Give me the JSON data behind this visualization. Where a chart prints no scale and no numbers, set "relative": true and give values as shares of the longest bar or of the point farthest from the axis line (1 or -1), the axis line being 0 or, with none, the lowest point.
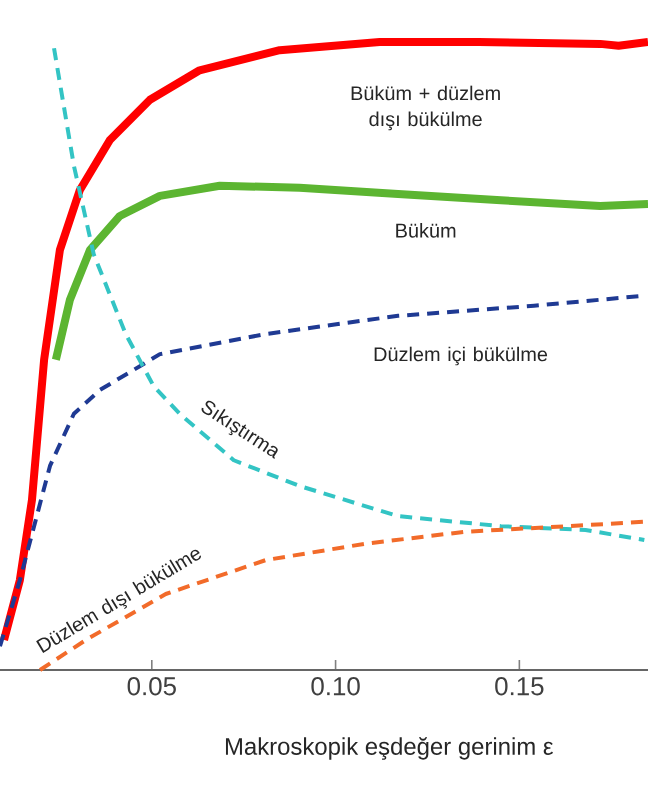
{
  "chart_data": {
    "type": "line",
    "xlabel": "Makroskopik eşdeğer gerinim ε",
    "relative": true,
    "xlim": [
      0.0087,
      0.185
    ],
    "xticks": [
      0.05,
      {
        "value": 0.1,
        "label": "0.10"
      },
      0.15
    ],
    "tick_labels": "x",
    "marker": "none",
    "series": [
      {
        "name": "Büküm + düzlem dışı bükülme",
        "color": "#ff0000",
        "line_style": "solid",
        "x": [
          0.0098,
          0.0141,
          0.0174,
          0.0207,
          0.025,
          0.0304,
          0.0386,
          0.0495,
          0.063,
          0.0848,
          0.112,
          0.139,
          0.172,
          0.177,
          0.185
        ],
        "values": [
          0.048,
          0.143,
          0.271,
          0.494,
          0.669,
          0.764,
          0.844,
          0.908,
          0.955,
          0.987,
          1.0,
          1.0,
          0.997,
          0.994,
          1.0
        ]
      },
      {
        "name": "Büküm",
        "color": "#5cb531",
        "line_style": "solid",
        "x": [
          0.0239,
          0.0277,
          0.0332,
          0.0413,
          0.0522,
          0.0685,
          0.0902,
          0.117,
          0.145,
          0.172,
          0.185
        ],
        "values": [
          0.494,
          0.589,
          0.669,
          0.723,
          0.755,
          0.771,
          0.768,
          0.758,
          0.748,
          0.739,
          0.742
        ]
      },
      {
        "name": "Düzlem içi bükülme",
        "color": "#1f3a93",
        "line_style": "dashed",
        "x": [
          0.0087,
          0.0141,
          0.0223,
          0.0288,
          0.0359,
          0.0451,
          0.0522,
          0.081,
          0.117,
          0.154,
          0.184
        ],
        "values": [
          0.038,
          0.143,
          0.325,
          0.408,
          0.446,
          0.478,
          0.503,
          0.535,
          0.564,
          0.58,
          0.596
        ]
      },
      {
        "name": "Sıkıştırma",
        "color": "#33c4c4",
        "line_style": "dashed",
        "x": [
          0.0234,
          0.0288,
          0.0342,
          0.0429,
          0.0505,
          0.0576,
          0.0723,
          0.0902,
          0.117,
          0.145,
          0.168,
          0.184
        ],
        "values": [
          0.99,
          0.803,
          0.662,
          0.535,
          0.452,
          0.408,
          0.334,
          0.293,
          0.245,
          0.229,
          0.223,
          0.207
        ]
      },
      {
        "name": "Düzlem dışı bükülme",
        "color": "#f26b2a",
        "line_style": "dashed",
        "x": [
          0.0196,
          0.0321,
          0.0538,
          0.081,
          0.108,
          0.135,
          0.163,
          0.184
        ],
        "values": [
          0.0,
          0.048,
          0.121,
          0.175,
          0.201,
          0.22,
          0.229,
          0.236
        ]
      }
    ]
  }
}
